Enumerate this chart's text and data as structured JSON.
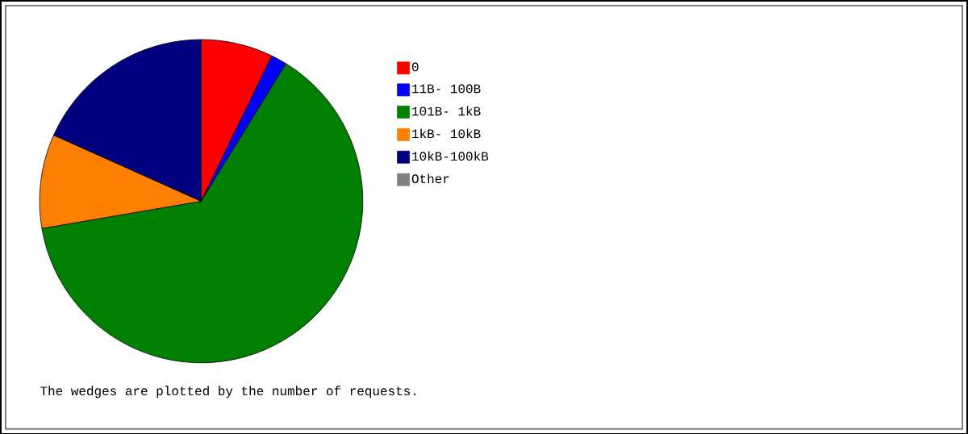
{
  "chart_data": {
    "type": "pie",
    "categories": [
      "0",
      "11B- 100B",
      "101B- 1kB",
      "1kB- 10kB",
      "10kB-100kB",
      "Other"
    ],
    "values": [
      7.2,
      1.6,
      63.5,
      9.4,
      18.3,
      0
    ],
    "colors": [
      "#ff0000",
      "#0000ff",
      "#008000",
      "#ff8000",
      "#000080",
      "#808080"
    ],
    "legend": "right",
    "annotations": [
      "The wedges are plotted by the number of requests."
    ]
  }
}
